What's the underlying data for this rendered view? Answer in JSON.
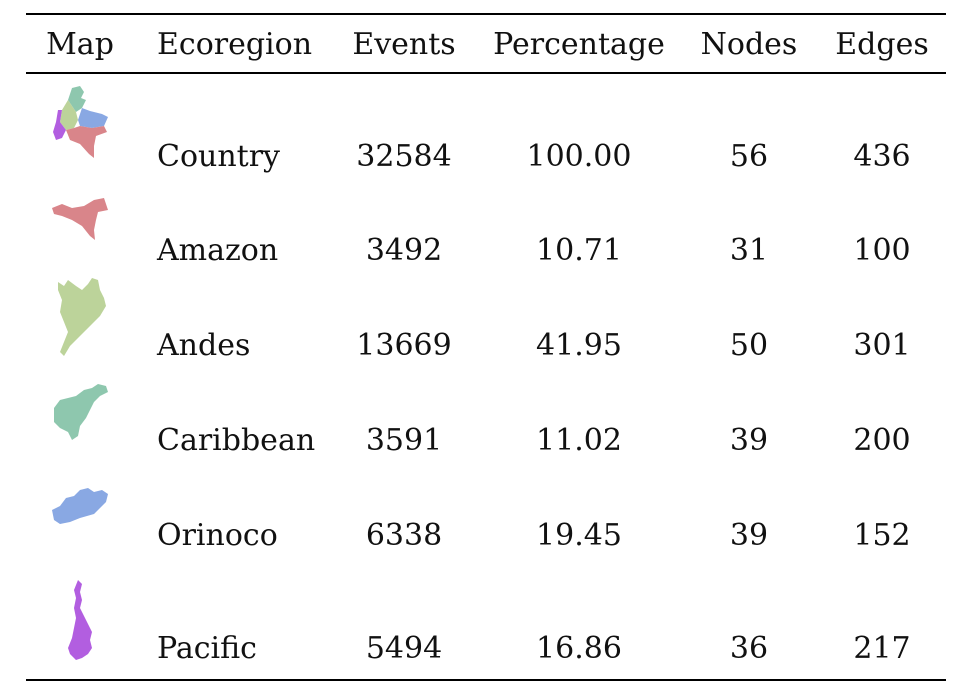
{
  "header": {
    "map": "Map",
    "ecoregion": "Ecoregion",
    "events": "Events",
    "percentage": "Percentage",
    "nodes": "Nodes",
    "edges": "Edges"
  },
  "rows": [
    {
      "ecoregion": "Country",
      "events": "32584",
      "percentage": "100.00",
      "nodes": "56",
      "edges": "436",
      "map_icon": "colombia-country-map-icon"
    },
    {
      "ecoregion": "Amazon",
      "events": "3492",
      "percentage": "10.71",
      "nodes": "31",
      "edges": "100",
      "map_icon": "amazon-region-map-icon",
      "color": "#d9858a"
    },
    {
      "ecoregion": "Andes",
      "events": "13669",
      "percentage": "41.95",
      "nodes": "50",
      "edges": "301",
      "map_icon": "andes-region-map-icon",
      "color": "#bcd39a"
    },
    {
      "ecoregion": "Caribbean",
      "events": "3591",
      "percentage": "11.02",
      "nodes": "39",
      "edges": "200",
      "map_icon": "caribbean-region-map-icon",
      "color": "#8ec7ae"
    },
    {
      "ecoregion": "Orinoco",
      "events": "6338",
      "percentage": "19.45",
      "nodes": "39",
      "edges": "152",
      "map_icon": "orinoco-region-map-icon",
      "color": "#89a8e3"
    },
    {
      "ecoregion": "Pacific",
      "events": "5494",
      "percentage": "16.86",
      "nodes": "36",
      "edges": "217",
      "map_icon": "pacific-region-map-icon",
      "color": "#b25ee0"
    }
  ]
}
